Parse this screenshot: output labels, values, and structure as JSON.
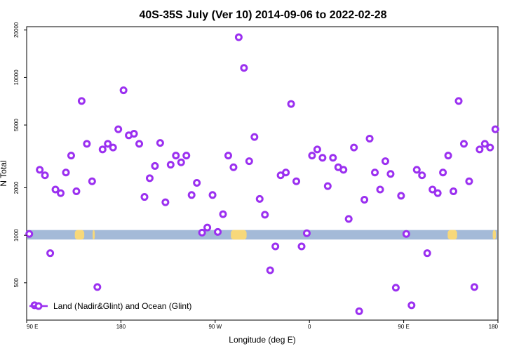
{
  "chart_data": {
    "type": "scatter",
    "title": "40S-35S July (Ver 10)   2014-09-06 to 2022-02-28",
    "xlabel": "Longitude (deg E)",
    "ylabel": "N Total",
    "x_ticks": [
      {
        "value": 90,
        "label": "90 E"
      },
      {
        "value": 180,
        "label": "180"
      },
      {
        "value": 270,
        "label": "90 W"
      },
      {
        "value": 360,
        "label": "0"
      },
      {
        "value": 450,
        "label": "90 E"
      },
      {
        "value": 540,
        "label": "180"
      }
    ],
    "y_ticks": [
      {
        "value": 500,
        "label": "500"
      },
      {
        "value": 1000,
        "label": "1000"
      },
      {
        "value": 2000,
        "label": "2000"
      },
      {
        "value": 5000,
        "label": "5000"
      },
      {
        "value": 10000,
        "label": "10000"
      },
      {
        "value": 20000,
        "label": "20000"
      }
    ],
    "xlim": [
      90,
      540
    ],
    "ylim": [
      290,
      21000
    ],
    "y_scale": "log",
    "legend": {
      "label": "Land (Nadir&Glint) and Ocean (Glint)",
      "position": "bottom-left"
    },
    "series": [
      {
        "name": "Land (Nadir&Glint) and Ocean (Glint)",
        "color": "#9b30f0",
        "x": [
          92.5,
          97.5,
          102.5,
          107.5,
          112.5,
          117.5,
          122.5,
          127.5,
          132.5,
          137.5,
          142.5,
          147.5,
          152.5,
          157.5,
          162.5,
          167.5,
          172.5,
          177.5,
          182.5,
          187.5,
          192.5,
          197.5,
          202.5,
          207.5,
          212.5,
          217.5,
          222.5,
          227.5,
          232.5,
          237.5,
          242.5,
          247.5,
          252.5,
          257.5,
          262.5,
          267.5,
          272.5,
          277.5,
          282.5,
          287.5,
          292.5,
          297.5,
          302.5,
          307.5,
          312.5,
          317.5,
          322.5,
          327.5,
          332.5,
          337.5,
          342.5,
          347.5,
          352.5,
          357.5,
          362.5,
          367.5,
          372.5,
          377.5,
          382.5,
          387.5,
          392.5,
          397.5,
          402.5,
          407.5,
          412.5,
          417.5,
          422.5,
          427.5,
          432.5,
          437.5,
          442.5,
          447.5,
          452.5,
          457.5,
          462.5,
          467.5,
          472.5,
          477.5,
          482.5,
          487.5,
          492.5,
          497.5,
          502.5,
          507.5,
          512.5,
          517.5,
          522.5,
          527.5,
          532.5,
          537.5
        ],
        "y": [
          1020,
          360,
          2600,
          2400,
          770,
          1950,
          1850,
          2500,
          3200,
          1900,
          7100,
          3800,
          2200,
          470,
          3500,
          3800,
          3600,
          4700,
          8300,
          4300,
          4400,
          3800,
          1750,
          2300,
          2750,
          3850,
          1620,
          2800,
          3200,
          2900,
          3200,
          1800,
          2150,
          1040,
          1120,
          1800,
          1050,
          1360,
          3200,
          2700,
          18000,
          11500,
          2950,
          4200,
          1700,
          1350,
          600,
          850,
          2400,
          2500,
          6800,
          2200,
          850,
          1030,
          3200,
          3500,
          3100,
          2050,
          3100,
          2700,
          2600,
          1270,
          3600,
          330,
          1680,
          4100,
          2500,
          1950,
          2950,
          2450,
          465,
          1780,
          1020,
          360,
          2600,
          2400,
          770,
          1950,
          1850,
          2500,
          3200,
          1900,
          7100,
          3800,
          2200,
          470,
          3500,
          3800,
          3600,
          4700
        ]
      }
    ],
    "band": {
      "y_low": 940,
      "y_high": 1080,
      "color": "#a4bad8"
    },
    "land_blobs": [
      {
        "x_start": 136,
        "x_end": 145,
        "color": "#f7d87a"
      },
      {
        "x_start": 153,
        "x_end": 155,
        "color": "#f7d87a"
      },
      {
        "x_start": 285,
        "x_end": 300,
        "color": "#f7d87a"
      },
      {
        "x_start": 492,
        "x_end": 501,
        "color": "#f7d87a"
      },
      {
        "x_start": 535,
        "x_end": 538,
        "color": "#f7d87a"
      }
    ]
  }
}
